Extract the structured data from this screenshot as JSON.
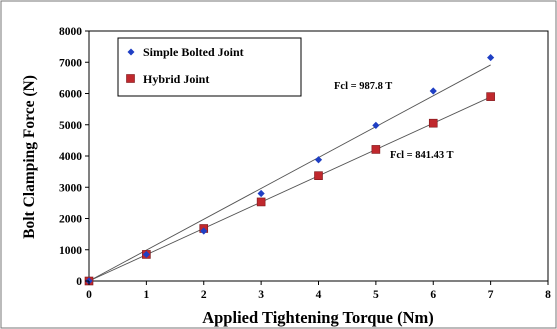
{
  "chart_data": {
    "type": "scatter",
    "title": "",
    "xlabel": "Applied Tightening Torque (Nm)",
    "ylabel": "Bolt Clamping Force (N)",
    "xlim": [
      0,
      8
    ],
    "ylim": [
      0,
      8000
    ],
    "x_ticks": [
      "0",
      "1",
      "2",
      "3",
      "4",
      "5",
      "6",
      "7",
      "8"
    ],
    "y_ticks": [
      "0",
      "1000",
      "2000",
      "3000",
      "4000",
      "5000",
      "6000",
      "7000",
      "8000"
    ],
    "grid": false,
    "legend_position": "top-left",
    "series": [
      {
        "name": "Simple Bolted Joint",
        "marker": "diamond",
        "color": "#1f3fc4",
        "x": [
          0,
          1,
          2,
          3,
          4,
          5,
          6,
          7
        ],
        "y": [
          0,
          850,
          1600,
          2800,
          3880,
          4980,
          6080,
          7150
        ],
        "fit_slope": 987.8,
        "fit_label": "Fcl = 987.8 T"
      },
      {
        "name": "Hybrid Joint",
        "marker": "square",
        "color": "#c0282d",
        "x": [
          0,
          1,
          2,
          3,
          4,
          5,
          6,
          7
        ],
        "y": [
          0,
          850,
          1680,
          2530,
          3370,
          4210,
          5050,
          5900
        ],
        "fit_slope": 841.43,
        "fit_label": "Fcl = 841.43 T"
      }
    ]
  }
}
